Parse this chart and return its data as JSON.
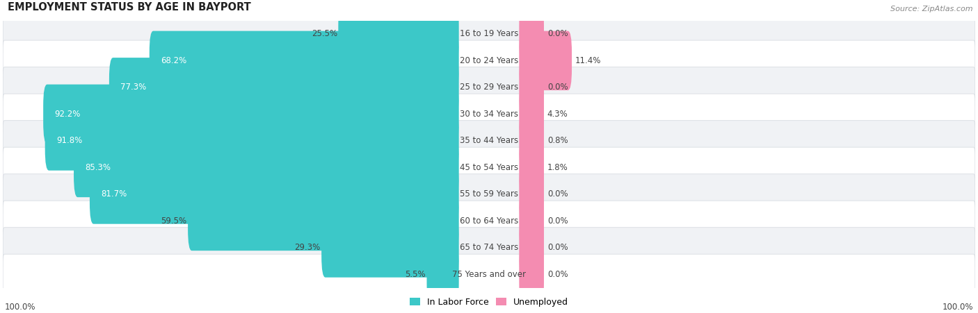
{
  "title": "EMPLOYMENT STATUS BY AGE IN BAYPORT",
  "source": "Source: ZipAtlas.com",
  "categories": [
    "16 to 19 Years",
    "20 to 24 Years",
    "25 to 29 Years",
    "30 to 34 Years",
    "35 to 44 Years",
    "45 to 54 Years",
    "55 to 59 Years",
    "60 to 64 Years",
    "65 to 74 Years",
    "75 Years and over"
  ],
  "labor_force": [
    25.5,
    68.2,
    77.3,
    92.2,
    91.8,
    85.3,
    81.7,
    59.5,
    29.3,
    5.5
  ],
  "unemployed": [
    0.0,
    11.4,
    0.0,
    4.3,
    0.8,
    1.8,
    0.0,
    0.0,
    0.0,
    0.0
  ],
  "labor_force_color": "#3cc8c8",
  "unemployed_color": "#f48cb1",
  "row_bg_even": "#f0f2f5",
  "row_bg_odd": "#ffffff",
  "row_border": "#d8dce2",
  "text_color_dark": "#444444",
  "text_color_white": "#ffffff",
  "label_fontsize": 8.5,
  "title_fontsize": 10.5,
  "source_fontsize": 8,
  "figsize": [
    14.06,
    4.51
  ]
}
